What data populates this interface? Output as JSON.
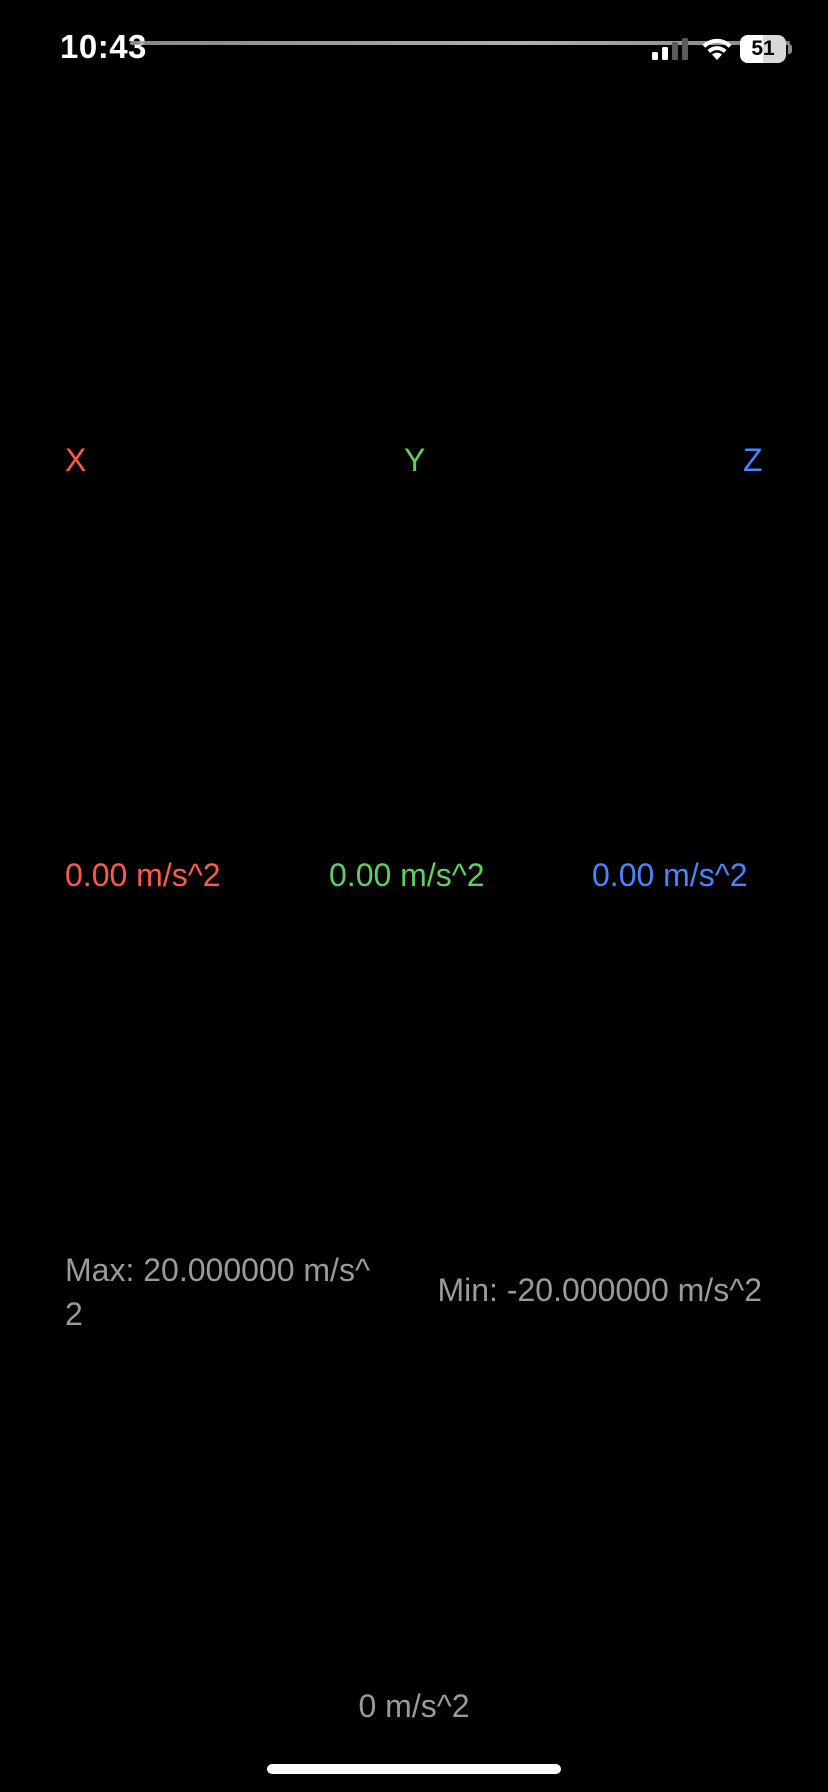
{
  "status_bar": {
    "time": "10:43",
    "battery_level": "51",
    "battery_fraction": 0.51,
    "signal_icon": "cellular-signal-icon",
    "wifi_icon": "wifi-icon",
    "battery_icon": "battery-icon"
  },
  "axes": {
    "x": {
      "label": "X",
      "color": "#ff5b4d"
    },
    "y": {
      "label": "Y",
      "color": "#5fcf65"
    },
    "z": {
      "label": "Z",
      "color": "#4a84ff"
    }
  },
  "readings": {
    "x": "0.00 m/s^2",
    "y": "0.00 m/s^2",
    "z": "0.00 m/s^2"
  },
  "range": {
    "max": "Max: 20.000000 m/s^2",
    "min": "Min: -20.000000 m/s^2"
  },
  "magnitude": "0 m/s^2",
  "colors": {
    "background": "#000000",
    "secondary_text": "#9a9a9e"
  }
}
